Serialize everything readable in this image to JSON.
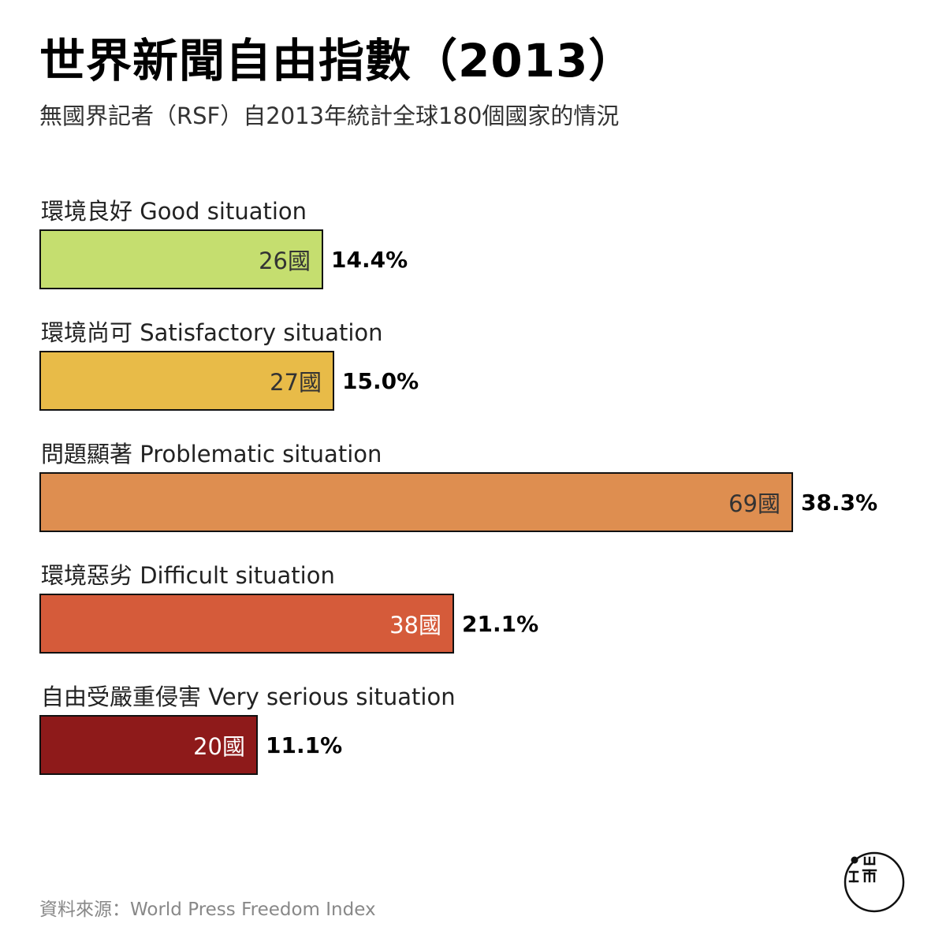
{
  "chart_data": {
    "type": "bar",
    "orientation": "horizontal",
    "title": "世界新聞自由指數（2013）",
    "subtitle": "無國界記者（RSF）自2013年統計全球180個國家的情況",
    "total": 180,
    "categories": [
      "環境良好 Good situation",
      "環境尚可 Satisfactory situation",
      "問題顯著 Problematic situation",
      "環境惡劣 Difficult situation",
      "自由受嚴重侵害 Very serious situation"
    ],
    "values": [
      26,
      27,
      69,
      38,
      20
    ],
    "count_labels": [
      "26國",
      "27國",
      "69國",
      "38國",
      "20國"
    ],
    "percent_labels": [
      "14.4%",
      "15.0%",
      "38.3%",
      "21.1%",
      "11.1%"
    ],
    "colors": [
      "#c5de6f",
      "#e8bb48",
      "#de8e50",
      "#d55b3a",
      "#8e1a1a"
    ],
    "count_text_colors": [
      "#333333",
      "#333333",
      "#333333",
      "#ffffff",
      "#ffffff"
    ],
    "source": "資料來源：World Press Freedom Index"
  }
}
